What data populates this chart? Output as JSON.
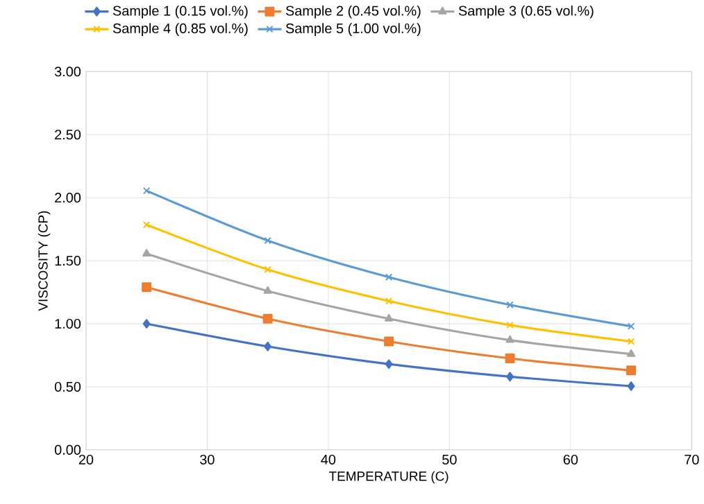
{
  "chart_data": {
    "type": "line",
    "xlabel": "TEMPERATURE (C)",
    "ylabel": "VISCOSITY (CP)",
    "x": [
      25,
      35,
      45,
      55,
      65
    ],
    "series": [
      {
        "name": "Sample 1 (0.15 vol.%)",
        "color": "#4472c4",
        "marker": "diamond",
        "values": [
          1.0,
          0.82,
          0.68,
          0.58,
          0.505
        ]
      },
      {
        "name": "Sample 2 (0.45 vol.%)",
        "color": "#ed7d31",
        "marker": "square",
        "values": [
          1.29,
          1.04,
          0.86,
          0.725,
          0.63
        ]
      },
      {
        "name": "Sample 3 (0.65 vol.%)",
        "color": "#a5a5a5",
        "marker": "triangle",
        "values": [
          1.555,
          1.26,
          1.04,
          0.87,
          0.76
        ]
      },
      {
        "name": "Sample 4 (0.85 vol.%)",
        "color": "#ffc000",
        "marker": "cross",
        "values": [
          1.785,
          1.43,
          1.18,
          0.99,
          0.86
        ]
      },
      {
        "name": "Sample 5 (1.00 vol.%)",
        "color": "#5b9bd5",
        "marker": "cross",
        "values": [
          2.055,
          1.66,
          1.37,
          1.15,
          0.98
        ]
      }
    ],
    "xlim": [
      20,
      70
    ],
    "xticks": [
      20,
      30,
      40,
      50,
      60,
      70
    ],
    "ylim": [
      0,
      3
    ],
    "yticks": [
      {
        "value": 0,
        "label": "0.00"
      },
      {
        "value": 0.5,
        "label": "0.50"
      },
      {
        "value": 1,
        "label": "1.00"
      },
      {
        "value": 1.5,
        "label": "1.50"
      },
      {
        "value": 2,
        "label": "2.00"
      },
      {
        "value": 2.5,
        "label": "2.50"
      },
      {
        "value": 3,
        "label": "3.00"
      }
    ],
    "grid": true,
    "legend": "top",
    "line_style": "solid"
  }
}
